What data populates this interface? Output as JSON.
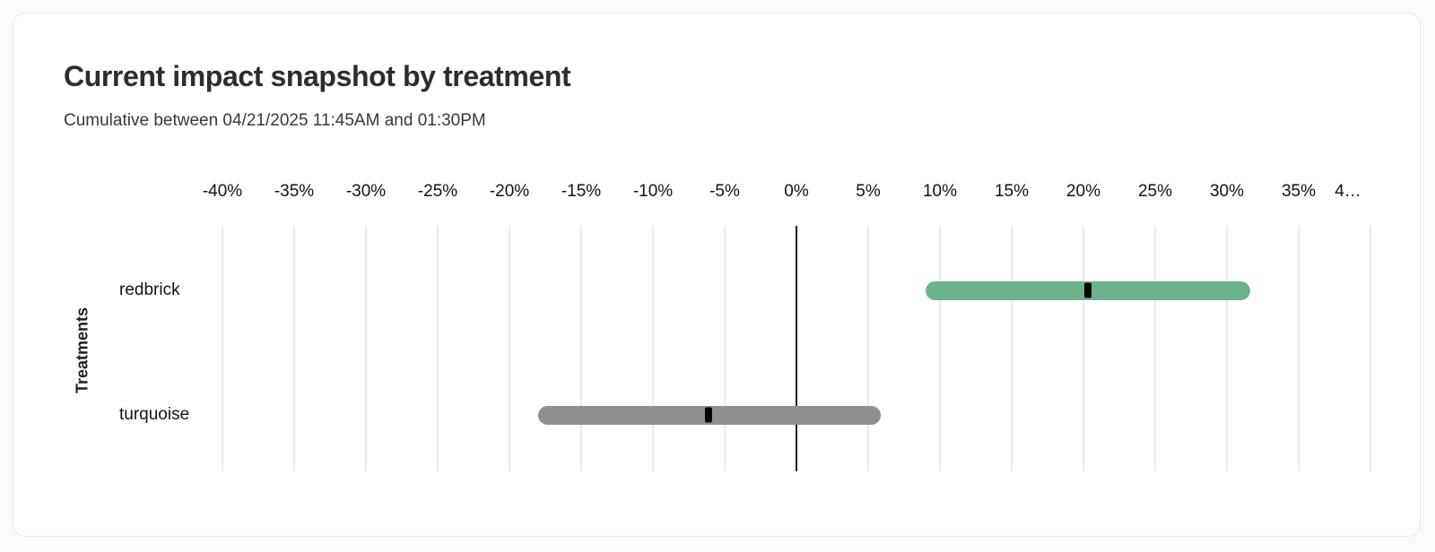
{
  "chart_data": {
    "type": "bar",
    "variant": "horizontal-range-bar-with-point-estimate",
    "title": "Current impact snapshot by treatment",
    "subtitle": "Cumulative between 04/21/2025 11:45AM and 01:30PM",
    "ylabel": "Treatments",
    "xlabel": "",
    "x_unit": "percent",
    "xlim": [
      -42.5,
      42.5
    ],
    "grid": "vertical-only",
    "zero_line": true,
    "x_ticks": [
      -40,
      -35,
      -30,
      -25,
      -20,
      -15,
      -10,
      -5,
      0,
      5,
      10,
      15,
      20,
      25,
      30,
      35,
      40
    ],
    "x_tick_labels": [
      "-40%",
      "-35%",
      "-30%",
      "-25%",
      "-20%",
      "-15%",
      "-10%",
      "-5%",
      "0%",
      "5%",
      "10%",
      "15%",
      "20%",
      "25%",
      "30%",
      "35%",
      "4…"
    ],
    "categories": [
      "redbrick",
      "turquoise"
    ],
    "series": [
      {
        "treatment": "redbrick",
        "low": 9.0,
        "high": 31.6,
        "point": 20.3,
        "bar_color": "#6cb38c"
      },
      {
        "treatment": "turquoise",
        "low": -18.0,
        "high": 5.9,
        "point": -6.1,
        "bar_color": "#8f8f8f"
      }
    ],
    "colors": {
      "positive_bar": "#6cb38c",
      "neutral_bar": "#8f8f8f",
      "point_marker": "#060606",
      "gridline": "#ebebeb",
      "zero_line": "#1c1c1c"
    }
  }
}
